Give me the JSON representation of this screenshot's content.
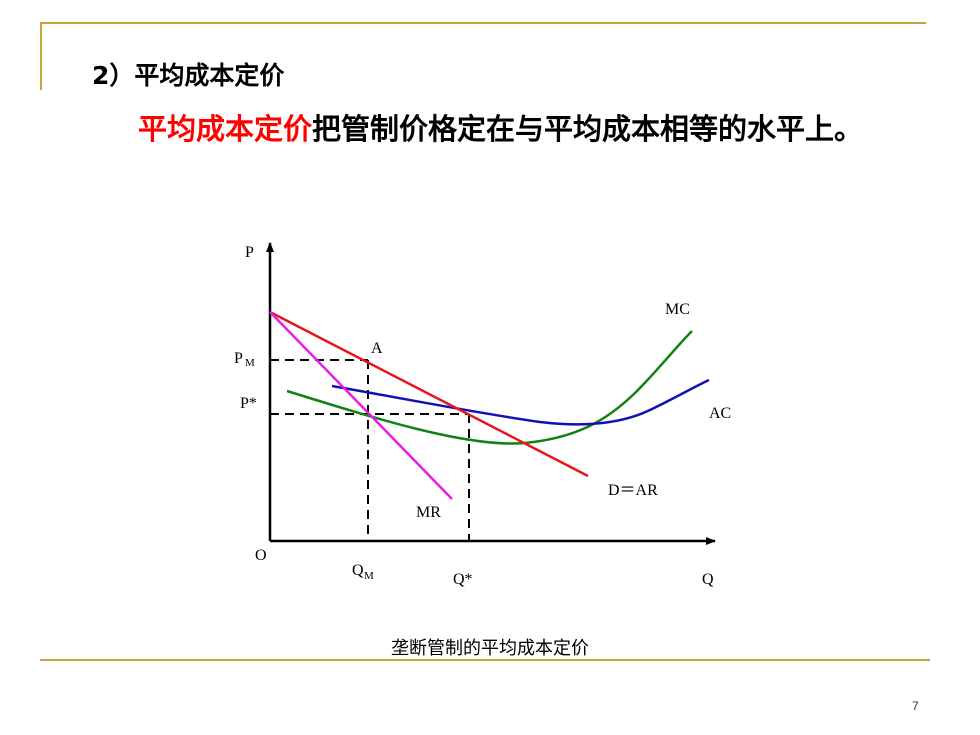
{
  "slide": {
    "heading": "2）平均成本定价",
    "subheading_red": "平均成本定价",
    "subheading_black": "把管制价格定在与平均成本相等的水平上。",
    "caption": "垄断管制的平均成本定价",
    "page_number": "7"
  },
  "diagram": {
    "axis_y_label": "P",
    "axis_x_label": "Q",
    "origin_label": "O",
    "price_pm_main": "P",
    "price_pm_sub": "M",
    "price_pstar": "P*",
    "qty_qm_main": "Q",
    "qty_qm_sub": "M",
    "qty_qstar": "Q*",
    "point_a": "A",
    "curve_mc": "MC",
    "curve_ac": "AC",
    "curve_d": "D＝AR",
    "curve_mr": "MR",
    "colors": {
      "demand": "#e8141c",
      "marginal_revenue": "#e81ee8",
      "marginal_cost": "#128212",
      "average_cost": "#1010b4",
      "accent_rule": "#c8a23a"
    }
  }
}
